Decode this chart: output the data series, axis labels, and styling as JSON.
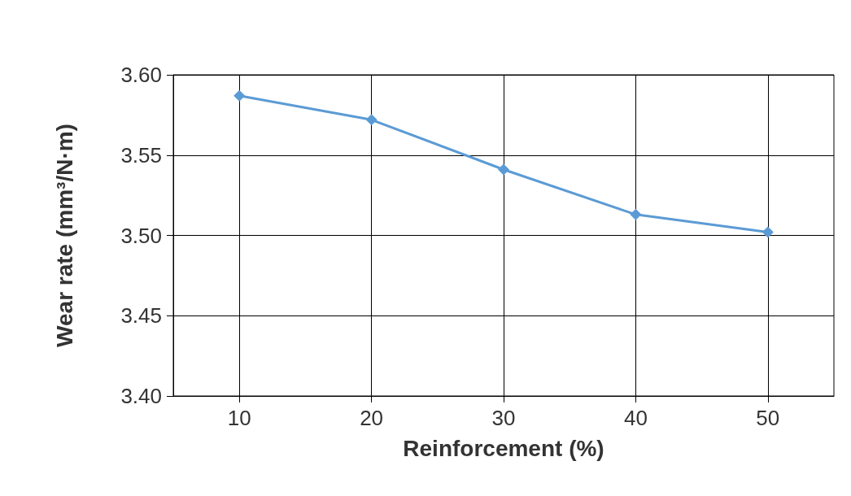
{
  "chart_data": {
    "type": "line",
    "xlabel": "Reinforcement (%)",
    "ylabel": "Wear rate (mm³/N·m)",
    "x": [
      10,
      20,
      30,
      40,
      50
    ],
    "series": [
      {
        "color": "#5b9bd5",
        "values": [
          3.587,
          3.572,
          3.541,
          3.513,
          3.502
        ]
      }
    ],
    "xlim": [
      5,
      55
    ],
    "xticks": [
      10,
      20,
      30,
      40,
      50
    ],
    "ylim": [
      3.4,
      3.6
    ],
    "yticks": [
      {
        "value": 3.4,
        "label": "3.40"
      },
      {
        "value": 3.45,
        "label": "3.45"
      },
      {
        "value": 3.5,
        "label": "3.50"
      },
      {
        "value": 3.55,
        "label": "3.55"
      },
      {
        "value": 3.6,
        "label": "3.60"
      }
    ],
    "grid": true,
    "marker": "diamond",
    "line_style": "solid"
  }
}
